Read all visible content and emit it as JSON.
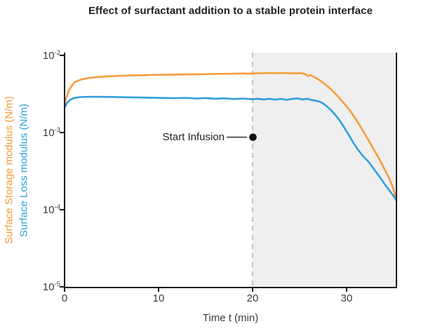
{
  "colors": {
    "storage_orange": "#F59C3C",
    "loss_blue": "#2E9FDA",
    "title_text": "#231F20",
    "axis_spine": "#1A1A1A",
    "tick_text": "#3B3B3B",
    "shaded_region": "#EFEFEF",
    "dashed_line": "#C9C9C9",
    "annotation_dot": "#111111",
    "annotation_line": "#474747"
  },
  "chart_data": {
    "type": "line",
    "title": "Effect of surfactant addition to a stable protein interface",
    "xlabel": "Time t (min)",
    "ylabel_storage": "Surface Storage modulus (N/m)",
    "ylabel_loss": "Surface Loss modulus (N/m)",
    "y_scale": "log",
    "grid": false,
    "legend_position": "none",
    "xlim": [
      0,
      35.3
    ],
    "ylim": [
      1e-05,
      0.01
    ],
    "x_ticks": [
      0,
      10,
      20,
      30
    ],
    "y_tick_exponents": [
      -2,
      -3,
      -4,
      -5
    ],
    "shaded_region": {
      "x_start": 20,
      "x_end": 35.3,
      "color": "#EFEFEF"
    },
    "infusion_line": {
      "x": 20,
      "style": "dashed",
      "color": "#C9C9C9"
    },
    "annotation": {
      "label": "Start Infusion",
      "x": 20,
      "y": 0.00087
    },
    "series": [
      {
        "name": "Surface Storage modulus (N/m)",
        "color": "#F59C3C",
        "points": [
          [
            0,
            0.0023
          ],
          [
            0.15,
            0.0027
          ],
          [
            0.3,
            0.0031
          ],
          [
            0.5,
            0.0036
          ],
          [
            0.8,
            0.0041
          ],
          [
            1.1,
            0.0045
          ],
          [
            1.5,
            0.00475
          ],
          [
            2,
            0.00495
          ],
          [
            2.6,
            0.0051
          ],
          [
            3.5,
            0.00525
          ],
          [
            4.5,
            0.00535
          ],
          [
            6,
            0.00545
          ],
          [
            8,
            0.00553
          ],
          [
            10,
            0.0056
          ],
          [
            12,
            0.00565
          ],
          [
            14,
            0.0057
          ],
          [
            16,
            0.00575
          ],
          [
            18,
            0.0058
          ],
          [
            19.2,
            0.00584
          ],
          [
            19.5,
            0.00578
          ],
          [
            19.8,
            0.00584
          ],
          [
            21,
            0.00588
          ],
          [
            22,
            0.00592
          ],
          [
            22.6,
            0.00588
          ],
          [
            23.2,
            0.00591
          ],
          [
            24,
            0.00588
          ],
          [
            24.6,
            0.00585
          ],
          [
            25.2,
            0.00588
          ],
          [
            25.6,
            0.00572
          ],
          [
            25.9,
            0.0054
          ],
          [
            26.15,
            0.00556
          ],
          [
            26.5,
            0.00528
          ],
          [
            27,
            0.00487
          ],
          [
            27.5,
            0.00443
          ],
          [
            28,
            0.00395
          ],
          [
            28.5,
            0.00348
          ],
          [
            29,
            0.003
          ],
          [
            29.5,
            0.00257
          ],
          [
            30,
            0.00218
          ],
          [
            30.5,
            0.00182
          ],
          [
            31,
            0.00148
          ],
          [
            31.5,
            0.00118
          ],
          [
            32,
            0.00093
          ],
          [
            32.5,
            0.00073
          ],
          [
            33,
            0.00057
          ],
          [
            33.5,
            0.00045
          ],
          [
            34,
            0.00034
          ],
          [
            34.5,
            0.00026
          ],
          [
            34.9,
            0.0002
          ],
          [
            35.3,
            0.000135
          ]
        ]
      },
      {
        "name": "Surface Loss modulus (N/m)",
        "color": "#2E9FDA",
        "points": [
          [
            0,
            0.0021
          ],
          [
            0.3,
            0.00245
          ],
          [
            0.6,
            0.00266
          ],
          [
            1,
            0.0028
          ],
          [
            1.6,
            0.00288
          ],
          [
            2.5,
            0.00291
          ],
          [
            4,
            0.0029
          ],
          [
            6,
            0.00287
          ],
          [
            8,
            0.00284
          ],
          [
            10,
            0.00281
          ],
          [
            12,
            0.00279
          ],
          [
            13,
            0.00282
          ],
          [
            14,
            0.00276
          ],
          [
            15,
            0.0028
          ],
          [
            16,
            0.00274
          ],
          [
            17,
            0.00278
          ],
          [
            18,
            0.00272
          ],
          [
            19,
            0.00276
          ],
          [
            20,
            0.0027
          ],
          [
            20.6,
            0.00274
          ],
          [
            21.2,
            0.00268
          ],
          [
            21.8,
            0.00274
          ],
          [
            22.4,
            0.00267
          ],
          [
            23,
            0.00273
          ],
          [
            23.6,
            0.00265
          ],
          [
            24.2,
            0.00273
          ],
          [
            24.8,
            0.00277
          ],
          [
            25.3,
            0.00268
          ],
          [
            25.8,
            0.00274
          ],
          [
            26.3,
            0.00263
          ],
          [
            26.8,
            0.00258
          ],
          [
            27.2,
            0.0025
          ],
          [
            27.6,
            0.00234
          ],
          [
            28,
            0.00213
          ],
          [
            28.4,
            0.00192
          ],
          [
            28.8,
            0.00169
          ],
          [
            29.2,
            0.00147
          ],
          [
            29.6,
            0.00124
          ],
          [
            30,
            0.00103
          ],
          [
            30.4,
            0.00086
          ],
          [
            30.8,
            0.00071
          ],
          [
            31.2,
            0.0006
          ],
          [
            31.6,
            0.00052
          ],
          [
            32,
            0.00046
          ],
          [
            32.4,
            0.00041
          ],
          [
            32.8,
            0.00035
          ],
          [
            33.2,
            0.0003
          ],
          [
            33.6,
            0.000258
          ],
          [
            34,
            0.000218
          ],
          [
            34.4,
            0.000188
          ],
          [
            34.8,
            0.000162
          ],
          [
            35.3,
            0.000132
          ]
        ]
      }
    ]
  }
}
